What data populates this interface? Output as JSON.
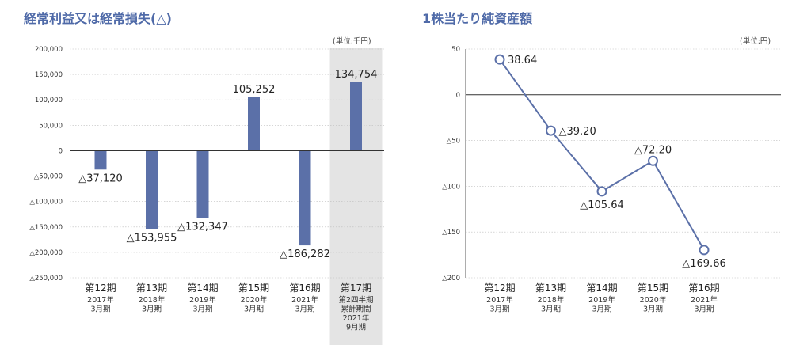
{
  "colors": {
    "title": "#4f6aa8",
    "bar": "#5b70a8",
    "line": "#5b70a8",
    "highlight_band": "#e4e4e4",
    "gridline": "#bdbdbd",
    "axis": "#555555"
  },
  "chart_data": [
    {
      "type": "bar",
      "title": "経常利益又は経常損失(△)",
      "unit": "(単位:千円)",
      "categories": [
        {
          "period": "第12期",
          "sub": [
            "2017年",
            "3月期"
          ]
        },
        {
          "period": "第13期",
          "sub": [
            "2018年",
            "3月期"
          ]
        },
        {
          "period": "第14期",
          "sub": [
            "2019年",
            "3月期"
          ]
        },
        {
          "period": "第15期",
          "sub": [
            "2020年",
            "3月期"
          ]
        },
        {
          "period": "第16期",
          "sub": [
            "2021年",
            "3月期"
          ]
        },
        {
          "period": "第17期",
          "sub": [
            "第2四半期",
            "累計期間",
            "2021年",
            "9月期"
          ]
        }
      ],
      "values": [
        -37120,
        -153955,
        -132347,
        105252,
        -186282,
        134754
      ],
      "value_labels": [
        "△37,120",
        "△153,955",
        "△132,347",
        "105,252",
        "△186,282",
        "134,754"
      ],
      "highlighted_category": "第17期",
      "ylim": [
        -250000,
        200000
      ],
      "yticks": [
        200000,
        150000,
        100000,
        50000,
        0,
        -50000,
        -100000,
        -150000,
        -200000,
        -250000
      ],
      "ytick_labels": [
        "200,000",
        "150,000",
        "100,000",
        "50,000",
        "0",
        "△50,000",
        "△100,000",
        "△150,000",
        "△200,000",
        "△250,000"
      ],
      "grid": true
    },
    {
      "type": "line",
      "title": "1株当たり純資産額",
      "unit": "(単位:円)",
      "categories": [
        {
          "period": "第12期",
          "sub": [
            "2017年",
            "3月期"
          ]
        },
        {
          "period": "第13期",
          "sub": [
            "2018年",
            "3月期"
          ]
        },
        {
          "period": "第14期",
          "sub": [
            "2019年",
            "3月期"
          ]
        },
        {
          "period": "第15期",
          "sub": [
            "2020年",
            "3月期"
          ]
        },
        {
          "period": "第16期",
          "sub": [
            "2021年",
            "3月期"
          ]
        }
      ],
      "values": [
        38.64,
        -39.2,
        -105.64,
        -72.2,
        -169.66
      ],
      "value_labels": [
        "38.64",
        "△39.20",
        "△105.64",
        "△72.20",
        "△169.66"
      ],
      "label_positions": [
        "right",
        "right",
        "below",
        "above",
        "below"
      ],
      "ylim": [
        -200,
        50
      ],
      "yticks": [
        50,
        0,
        -50,
        -100,
        -150,
        -200
      ],
      "ytick_labels": [
        "50",
        "0",
        "△50",
        "△100",
        "△150",
        "△200"
      ],
      "grid": true
    }
  ]
}
